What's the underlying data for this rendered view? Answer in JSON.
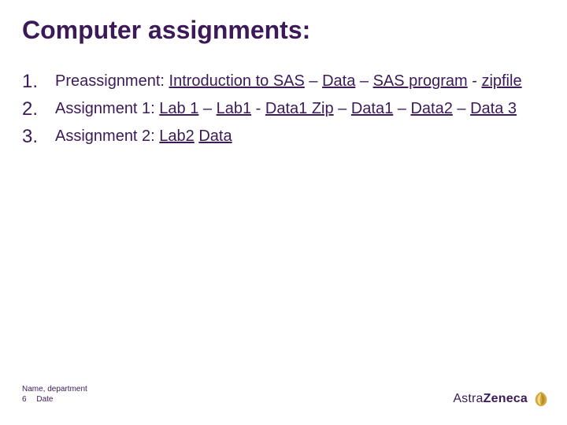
{
  "colors": {
    "text": "#3b1a57",
    "background": "#ffffff",
    "logo_accent": "#d4a939"
  },
  "title": "Computer assignments:",
  "items": [
    {
      "parts": [
        {
          "text": "Preassignment: ",
          "link": false
        },
        {
          "text": "Introduction to SAS",
          "link": true
        },
        {
          "text": " – ",
          "link": false
        },
        {
          "text": "Data",
          "link": true
        },
        {
          "text": " – ",
          "link": false
        },
        {
          "text": "SAS program",
          "link": true
        },
        {
          "text": " - ",
          "link": false
        },
        {
          "text": "zipfile",
          "link": true
        }
      ]
    },
    {
      "parts": [
        {
          "text": "Assignment 1: ",
          "link": false
        },
        {
          "text": "Lab 1",
          "link": true
        },
        {
          "text": " – ",
          "link": false
        },
        {
          "text": "Lab1",
          "link": true
        },
        {
          "text": " - ",
          "link": false
        },
        {
          "text": "Data1 Zip",
          "link": true
        },
        {
          "text": " – ",
          "link": false
        },
        {
          "text": "Data1",
          "link": true
        },
        {
          "text": " – ",
          "link": false
        },
        {
          "text": "Data2",
          "link": true
        },
        {
          "text": " – ",
          "link": false
        },
        {
          "text": "Data 3",
          "link": true
        }
      ]
    },
    {
      "parts": [
        {
          "text": "Assignment 2: ",
          "link": false
        },
        {
          "text": "Lab2",
          "link": true
        },
        {
          "text": " ",
          "link": false
        },
        {
          "text": "Data",
          "link": true
        }
      ]
    }
  ],
  "footer": {
    "line1": "Name, department",
    "page": "6",
    "date": "Date"
  },
  "logo": {
    "part1": "Astra",
    "part2": "Zeneca"
  }
}
